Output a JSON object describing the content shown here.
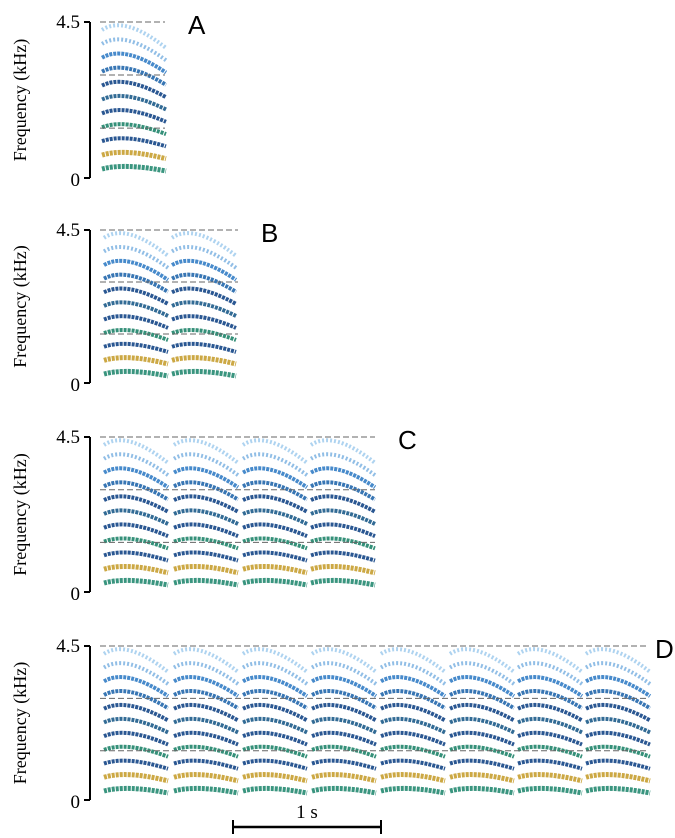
{
  "panels": [
    {
      "label": "A",
      "y_label": "Frequency (kHz)",
      "y_max": "4.5",
      "y_min": "0"
    },
    {
      "label": "B",
      "y_label": "Frequency (kHz)",
      "y_max": "4.5",
      "y_min": "0"
    },
    {
      "label": "C",
      "y_label": "Frequency (kHz)",
      "y_max": "4.5",
      "y_min": "0"
    },
    {
      "label": "D",
      "y_label": "Frequency (kHz)",
      "y_max": "4.5",
      "y_min": "0"
    }
  ],
  "scale_bar": {
    "label": "1 s"
  }
}
